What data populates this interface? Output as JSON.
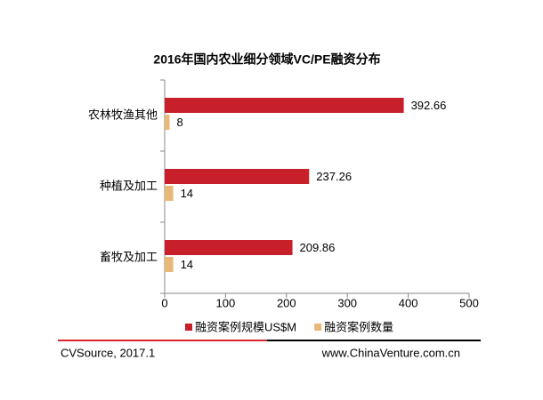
{
  "chart_data": {
    "type": "hbar",
    "title": "2016年国内农业细分领域VC/PE融资分布",
    "categories": [
      "农林牧渔其他",
      "种植及加工",
      "畜牧及加工"
    ],
    "series": [
      {
        "name": "融资案例规模US$M",
        "color": "#c8202a",
        "values": [
          392.66,
          237.26,
          209.86
        ]
      },
      {
        "name": "融资案例数量",
        "color": "#e8b878",
        "values": [
          8,
          14,
          14
        ]
      }
    ],
    "xlim": [
      0,
      500
    ],
    "xticks": [
      0,
      100,
      200,
      300,
      400,
      500
    ],
    "grid": false,
    "legend": "bottom"
  },
  "footer": {
    "source": "CVSource, 2017.1",
    "website": "www.ChinaVenture.com.cn"
  }
}
